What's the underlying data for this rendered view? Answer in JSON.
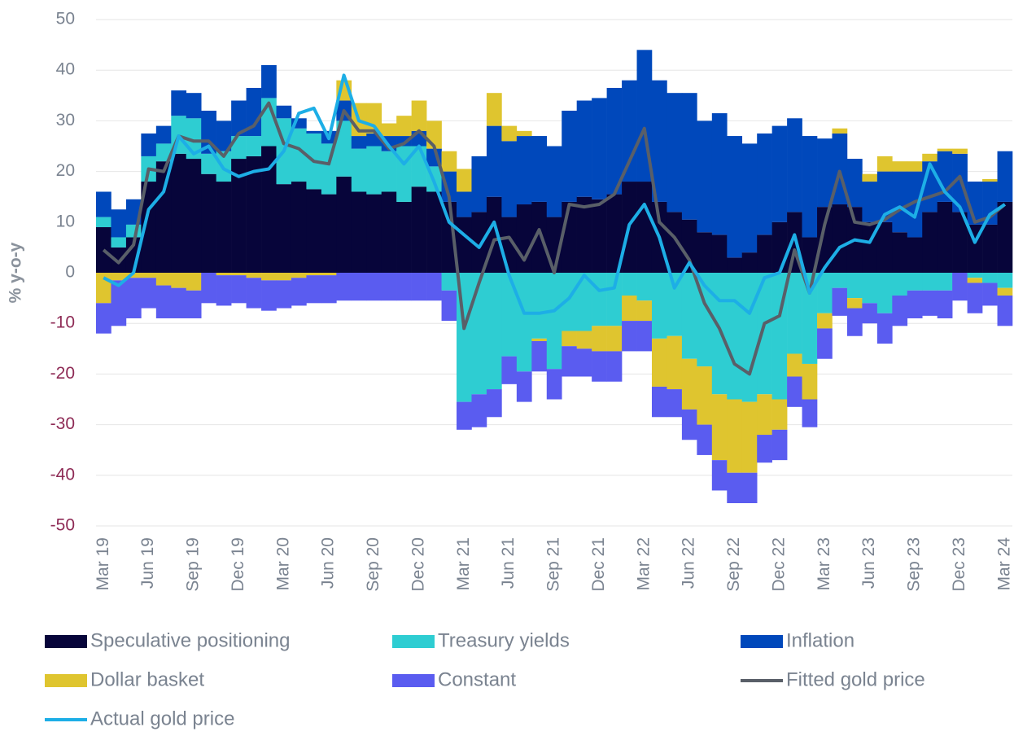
{
  "chart_data": {
    "type": "bar",
    "stacked": true,
    "y_label": "% y-o-y",
    "categories": [
      "Mar 19",
      null,
      null,
      "Jun 19",
      null,
      null,
      "Sep 19",
      null,
      null,
      "Dec 19",
      null,
      null,
      "Mar 20",
      null,
      null,
      "Jun 20",
      null,
      null,
      "Sep 20",
      null,
      null,
      "Dec 20",
      null,
      null,
      "Mar 21",
      null,
      null,
      "Jun 21",
      null,
      null,
      "Sep 21",
      null,
      null,
      "Dec 21",
      null,
      null,
      "Mar 22",
      null,
      null,
      "Jun 22",
      null,
      null,
      "Sep 22",
      null,
      null,
      "Dec 22",
      null,
      null,
      "Mar 23",
      null,
      null,
      "Jun 23",
      null,
      null,
      "Sep 23",
      null,
      null,
      "Dec 23",
      null,
      null,
      "Mar 24"
    ],
    "ylim": [
      -50,
      50
    ],
    "yticks": [
      -50,
      -40,
      -30,
      -20,
      -10,
      0,
      10,
      20,
      30,
      40,
      50
    ],
    "grid": true,
    "tick_color": "#7a8390",
    "negative_tick_color": "#8e2a55",
    "legend_position": "bottom",
    "series": [
      {
        "name": "Speculative positioning",
        "type": "bar",
        "color": "#07053a",
        "values": [
          9,
          5,
          7,
          18,
          22,
          23.5,
          22.5,
          19.5,
          18,
          22.5,
          23,
          25,
          17.5,
          18,
          16.5,
          15.5,
          19,
          16,
          15.5,
          16,
          14,
          17,
          16,
          14,
          11,
          12,
          15,
          11,
          13.5,
          14,
          11,
          14,
          15,
          14.5,
          15.5,
          18,
          18,
          14,
          12,
          10.5,
          8,
          7.5,
          3,
          4,
          7.5,
          10,
          12,
          7,
          13,
          13.5,
          13,
          10,
          10,
          8,
          7,
          12,
          14,
          12,
          9.5,
          9.5,
          14
        ]
      },
      {
        "name": "Treasury yields",
        "type": "bar",
        "color": "#2ecdd2",
        "values": [
          2,
          2,
          2.5,
          5,
          3.5,
          7.5,
          8,
          4,
          6,
          4.5,
          4,
          9.5,
          13,
          10.5,
          11,
          10,
          11,
          8.5,
          9.5,
          8,
          11,
          8,
          5,
          -3.5,
          -25.5,
          -24,
          -23,
          -16.5,
          -19.5,
          -13,
          -19,
          -11.5,
          -11.5,
          -10.5,
          -10.5,
          -4.5,
          -5.5,
          -13,
          -12.5,
          -17,
          -18.5,
          -24,
          -25,
          -25.5,
          -24,
          -25,
          -16,
          -18,
          -8,
          -3,
          -5,
          -6,
          -8,
          -4.5,
          -3.5,
          -3.5,
          -3.5,
          0,
          -1,
          -2,
          -3
        ]
      },
      {
        "name": "Inflation",
        "type": "bar",
        "color": "#0048bb",
        "values": [
          5,
          5.5,
          5,
          4.5,
          3.5,
          5,
          5,
          8.5,
          6,
          7,
          9.5,
          6.5,
          2.5,
          2,
          0.5,
          2.5,
          4,
          2.5,
          2.5,
          3,
          2,
          3,
          3.5,
          6,
          5,
          11,
          14,
          15,
          13.5,
          13,
          14,
          18,
          19,
          20,
          21,
          20,
          26,
          24,
          23.5,
          25,
          22,
          24,
          24,
          21.5,
          20,
          19,
          18.5,
          20,
          13.5,
          14,
          9.5,
          8,
          10,
          12,
          13,
          10,
          10,
          11.5,
          8.5,
          8.5,
          10
        ]
      },
      {
        "name": "Dollar basket",
        "type": "bar",
        "color": "#dfc52f",
        "values": [
          -6,
          -1.5,
          -1,
          -1,
          -2.5,
          -3,
          -3.5,
          0,
          -0.5,
          -0.5,
          -1,
          -1.5,
          -1.5,
          -1,
          -0.5,
          -0.5,
          4,
          6.5,
          6,
          2.5,
          4,
          6,
          5.5,
          4,
          4.5,
          0,
          6.5,
          3,
          1,
          -0.5,
          0,
          -3,
          -3.5,
          -5,
          -5,
          -5,
          -4,
          -9.5,
          -10.5,
          -10,
          -11.5,
          -13,
          -14.5,
          -14,
          -8,
          -6,
          -4.5,
          -7,
          -3,
          1,
          -2,
          1.5,
          3,
          2,
          2,
          1.5,
          0.5,
          1,
          -1,
          0.5,
          -1.5
        ]
      },
      {
        "name": "Constant",
        "type": "bar",
        "color": "#5a5cf0",
        "values": [
          -6,
          -9,
          -8,
          -6,
          -6.5,
          -6,
          -5.5,
          -6,
          -6,
          -5.5,
          -6,
          -6,
          -5.5,
          -5.5,
          -5.5,
          -5.5,
          -5.5,
          -5.5,
          -5.5,
          -5.5,
          -5.5,
          -5.5,
          -5.5,
          -6,
          -5.5,
          -6.5,
          -5.5,
          -5.5,
          -6,
          -6,
          -6,
          -6,
          -5.5,
          -6,
          -6,
          -6,
          -6,
          -6,
          -5.5,
          -6,
          -6,
          -6,
          -6,
          -6,
          -5.5,
          -6,
          -6,
          -5.5,
          -6,
          -5.5,
          -5.5,
          -4,
          -6,
          -6,
          -5.5,
          -5,
          -5.5,
          -5.5,
          -6,
          -4.5,
          -6
        ]
      },
      {
        "name": "Fitted gold price",
        "type": "line",
        "color": "#595f68",
        "values": [
          4.5,
          2,
          5.5,
          20.5,
          20,
          27,
          26,
          26,
          23,
          27.5,
          29,
          33.5,
          25.5,
          24.5,
          22,
          21.5,
          32,
          28,
          28,
          24.5,
          25.5,
          28,
          25,
          15,
          -11,
          -2,
          6.5,
          7,
          2.5,
          8.5,
          0,
          13.5,
          13,
          13.5,
          15.5,
          22,
          28.5,
          10,
          7,
          2.5,
          -6,
          -11,
          -18,
          -20,
          -10,
          -8.5,
          4.5,
          -4,
          9.5,
          20,
          10,
          9.5,
          10.5,
          12.5,
          14,
          15,
          16,
          19,
          10,
          11,
          13.5
        ]
      },
      {
        "name": "Actual gold price",
        "type": "line",
        "color": "#1daee6",
        "values": [
          -1,
          -2.5,
          0,
          12.5,
          16,
          27,
          23.5,
          25,
          20.5,
          19,
          20,
          20.5,
          24,
          31.5,
          32.5,
          26.5,
          39,
          30,
          29,
          25,
          21.5,
          25,
          18,
          10,
          7.5,
          5,
          10,
          -0.5,
          -8,
          -8,
          -7.5,
          -5,
          -0.5,
          -3.5,
          -3,
          9.5,
          13.5,
          7,
          -3,
          2,
          -2.5,
          -5.5,
          -5.5,
          -8,
          -1,
          0,
          7.5,
          -4,
          1,
          5,
          6.5,
          6,
          11.5,
          13,
          11,
          21.5,
          16,
          13,
          6,
          11.5,
          13.5
        ]
      }
    ]
  }
}
